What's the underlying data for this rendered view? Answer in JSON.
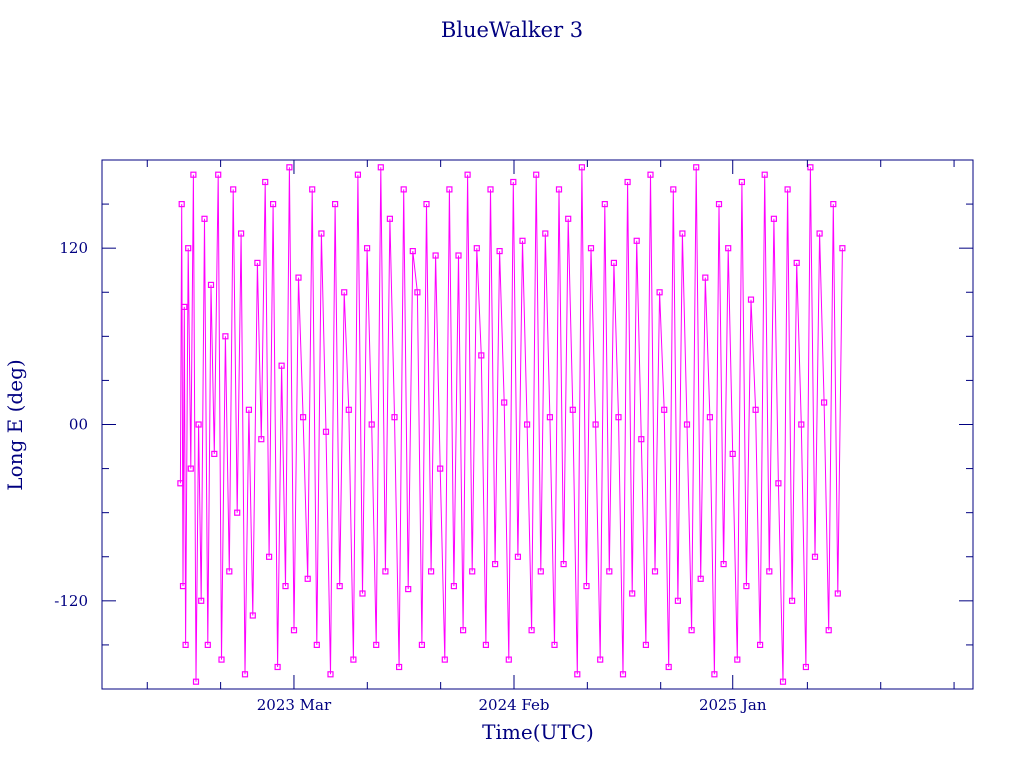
{
  "chart_data": {
    "type": "line",
    "title": "BlueWalker 3",
    "xlabel": "Time(UTC)",
    "ylabel": "Long E (deg)",
    "x_tick_labels": [
      "2023 Mar",
      "2024 Feb",
      "2025 Jan"
    ],
    "y_tick_labels": [
      "120",
      "00",
      "-120"
    ],
    "y_ticks": [
      120,
      0,
      -120
    ],
    "ylim": [
      -180,
      180
    ],
    "x_axis": {
      "start": "2022-05-11",
      "end": "2026-01-04",
      "ticks": [
        "2023-03-01",
        "2024-02-01",
        "2025-01-01"
      ]
    },
    "colors": {
      "axis": "#000080",
      "series": "#ff00ff"
    },
    "grid": false,
    "series": [
      {
        "marker": "square",
        "points": [
          [
            "2022-09-08",
            -40
          ],
          [
            "2022-09-10",
            150
          ],
          [
            "2022-09-12",
            -110
          ],
          [
            "2022-09-14",
            80
          ],
          [
            "2022-09-16",
            -150
          ],
          [
            "2022-09-20",
            120
          ],
          [
            "2022-09-24",
            -30
          ],
          [
            "2022-09-28",
            170
          ],
          [
            "2022-10-02",
            -175
          ],
          [
            "2022-10-06",
            0
          ],
          [
            "2022-10-10",
            -120
          ],
          [
            "2022-10-15",
            140
          ],
          [
            "2022-10-20",
            -150
          ],
          [
            "2022-10-25",
            95
          ],
          [
            "2022-10-30",
            -20
          ],
          [
            "2022-11-05",
            170
          ],
          [
            "2022-11-10",
            -160
          ],
          [
            "2022-11-16",
            60
          ],
          [
            "2022-11-22",
            -100
          ],
          [
            "2022-11-28",
            160
          ],
          [
            "2022-12-04",
            -60
          ],
          [
            "2022-12-10",
            130
          ],
          [
            "2022-12-16",
            -170
          ],
          [
            "2022-12-22",
            10
          ],
          [
            "2022-12-28",
            -130
          ],
          [
            "2023-01-04",
            110
          ],
          [
            "2023-01-10",
            -10
          ],
          [
            "2023-01-16",
            165
          ],
          [
            "2023-01-22",
            -90
          ],
          [
            "2023-01-28",
            150
          ],
          [
            "2023-02-04",
            -165
          ],
          [
            "2023-02-10",
            40
          ],
          [
            "2023-02-16",
            -110
          ],
          [
            "2023-02-22",
            175
          ],
          [
            "2023-03-01",
            -140
          ],
          [
            "2023-03-08",
            100
          ],
          [
            "2023-03-15",
            5
          ],
          [
            "2023-03-22",
            -105
          ],
          [
            "2023-03-29",
            160
          ],
          [
            "2023-04-05",
            -150
          ],
          [
            "2023-04-12",
            130
          ],
          [
            "2023-04-19",
            -5
          ],
          [
            "2023-04-26",
            -170
          ],
          [
            "2023-05-03",
            150
          ],
          [
            "2023-05-10",
            -110
          ],
          [
            "2023-05-17",
            90
          ],
          [
            "2023-05-24",
            10
          ],
          [
            "2023-05-31",
            -160
          ],
          [
            "2023-06-07",
            170
          ],
          [
            "2023-06-14",
            -115
          ],
          [
            "2023-06-21",
            120
          ],
          [
            "2023-06-28",
            0
          ],
          [
            "2023-07-05",
            -150
          ],
          [
            "2023-07-12",
            175
          ],
          [
            "2023-07-19",
            -100
          ],
          [
            "2023-07-26",
            140
          ],
          [
            "2023-08-02",
            5
          ],
          [
            "2023-08-09",
            -165
          ],
          [
            "2023-08-16",
            160
          ],
          [
            "2023-08-23",
            -112
          ],
          [
            "2023-08-30",
            118
          ],
          [
            "2023-09-06",
            90
          ],
          [
            "2023-09-13",
            -150
          ],
          [
            "2023-09-20",
            150
          ],
          [
            "2023-09-27",
            -100
          ],
          [
            "2023-10-04",
            115
          ],
          [
            "2023-10-11",
            -30
          ],
          [
            "2023-10-18",
            -160
          ],
          [
            "2023-10-25",
            160
          ],
          [
            "2023-11-01",
            -110
          ],
          [
            "2023-11-08",
            115
          ],
          [
            "2023-11-15",
            -140
          ],
          [
            "2023-11-22",
            170
          ],
          [
            "2023-11-29",
            -100
          ],
          [
            "2023-12-06",
            120
          ],
          [
            "2023-12-13",
            47
          ],
          [
            "2023-12-20",
            -150
          ],
          [
            "2023-12-27",
            160
          ],
          [
            "2024-01-03",
            -95
          ],
          [
            "2024-01-10",
            118
          ],
          [
            "2024-01-17",
            15
          ],
          [
            "2024-01-24",
            -160
          ],
          [
            "2024-01-31",
            165
          ],
          [
            "2024-02-07",
            -90
          ],
          [
            "2024-02-14",
            125
          ],
          [
            "2024-02-21",
            0
          ],
          [
            "2024-02-28",
            -140
          ],
          [
            "2024-03-06",
            170
          ],
          [
            "2024-03-13",
            -100
          ],
          [
            "2024-03-20",
            130
          ],
          [
            "2024-03-27",
            5
          ],
          [
            "2024-04-03",
            -150
          ],
          [
            "2024-04-10",
            160
          ],
          [
            "2024-04-17",
            -95
          ],
          [
            "2024-04-24",
            140
          ],
          [
            "2024-05-01",
            10
          ],
          [
            "2024-05-08",
            -170
          ],
          [
            "2024-05-15",
            175
          ],
          [
            "2024-05-22",
            -110
          ],
          [
            "2024-05-29",
            120
          ],
          [
            "2024-06-05",
            0
          ],
          [
            "2024-06-12",
            -160
          ],
          [
            "2024-06-19",
            150
          ],
          [
            "2024-06-26",
            -100
          ],
          [
            "2024-07-03",
            110
          ],
          [
            "2024-07-10",
            5
          ],
          [
            "2024-07-17",
            -170
          ],
          [
            "2024-07-24",
            165
          ],
          [
            "2024-07-31",
            -115
          ],
          [
            "2024-08-07",
            125
          ],
          [
            "2024-08-14",
            -10
          ],
          [
            "2024-08-21",
            -150
          ],
          [
            "2024-08-28",
            170
          ],
          [
            "2024-09-04",
            -100
          ],
          [
            "2024-09-11",
            90
          ],
          [
            "2024-09-18",
            10
          ],
          [
            "2024-09-25",
            -165
          ],
          [
            "2024-10-02",
            160
          ],
          [
            "2024-10-09",
            -120
          ],
          [
            "2024-10-16",
            130
          ],
          [
            "2024-10-23",
            0
          ],
          [
            "2024-10-30",
            -140
          ],
          [
            "2024-11-06",
            175
          ],
          [
            "2024-11-13",
            -105
          ],
          [
            "2024-11-20",
            100
          ],
          [
            "2024-11-27",
            5
          ],
          [
            "2024-12-04",
            -170
          ],
          [
            "2024-12-11",
            150
          ],
          [
            "2024-12-18",
            -95
          ],
          [
            "2024-12-25",
            120
          ],
          [
            "2025-01-01",
            -20
          ],
          [
            "2025-01-08",
            -160
          ],
          [
            "2025-01-15",
            165
          ],
          [
            "2025-01-22",
            -110
          ],
          [
            "2025-01-29",
            85
          ],
          [
            "2025-02-05",
            10
          ],
          [
            "2025-02-12",
            -150
          ],
          [
            "2025-02-19",
            170
          ],
          [
            "2025-02-26",
            -100
          ],
          [
            "2025-03-05",
            140
          ],
          [
            "2025-03-12",
            -40
          ],
          [
            "2025-03-19",
            -175
          ],
          [
            "2025-03-26",
            160
          ],
          [
            "2025-04-02",
            -120
          ],
          [
            "2025-04-09",
            110
          ],
          [
            "2025-04-16",
            0
          ],
          [
            "2025-04-23",
            -165
          ],
          [
            "2025-04-30",
            175
          ],
          [
            "2025-05-07",
            -90
          ],
          [
            "2025-05-14",
            130
          ],
          [
            "2025-05-21",
            15
          ],
          [
            "2025-05-28",
            -140
          ],
          [
            "2025-06-04",
            150
          ],
          [
            "2025-06-11",
            -115
          ],
          [
            "2025-06-18",
            120
          ]
        ]
      }
    ]
  }
}
